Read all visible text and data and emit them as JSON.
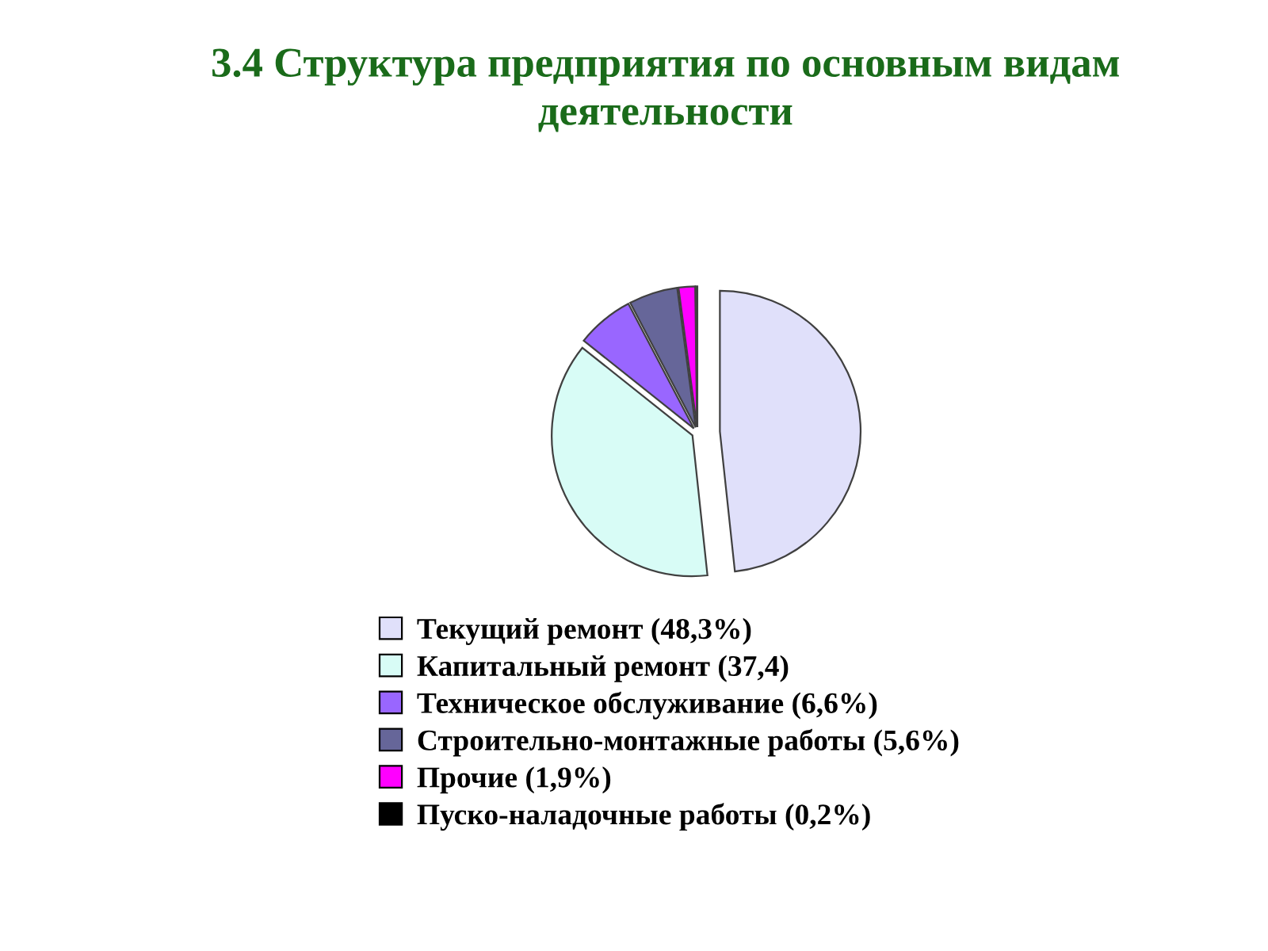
{
  "chart_data": {
    "type": "pie",
    "title": "3.4 Структура предприятия по основным видам деятельности",
    "categories": [
      "Текущий ремонт (48,3%)",
      "Капитальный ремонт (37,4)",
      "Техническое обслуживание (6,6%)",
      "Строительно-монтажные работы (5,6%)",
      "Прочие (1,9%)",
      "Пуско-наладочные работы (0,2%)"
    ],
    "values": [
      48.3,
      37.4,
      6.6,
      5.6,
      1.9,
      0.2
    ],
    "colors": [
      "#e0e0fa",
      "#d8fcf6",
      "#9966ff",
      "#666699",
      "#ff00ff",
      "#000000"
    ],
    "legend": "bottom"
  }
}
